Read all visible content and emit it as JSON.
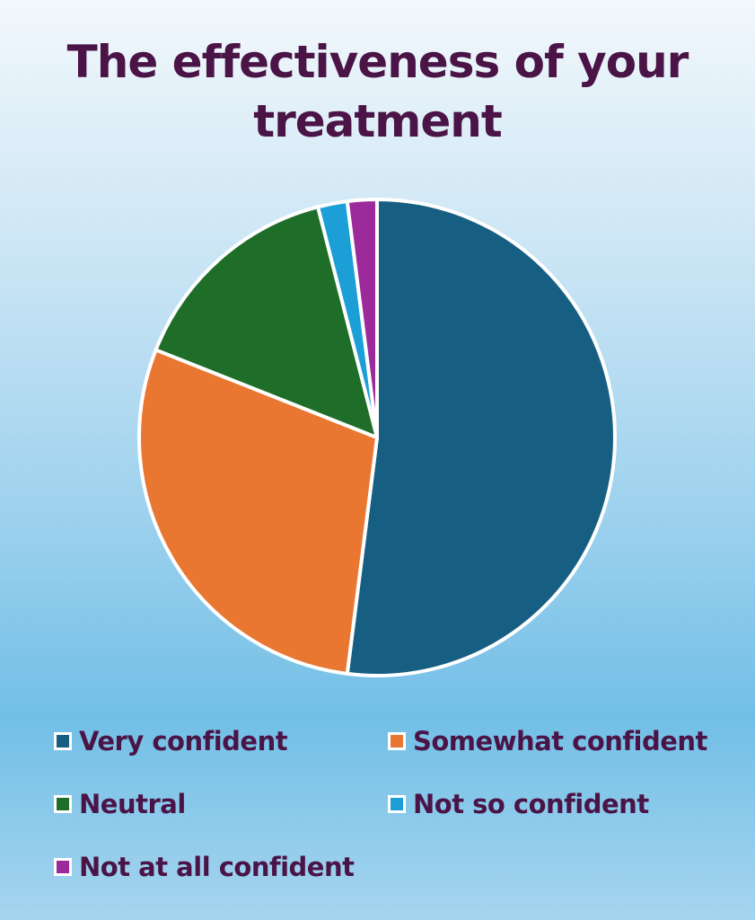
{
  "chart_data": {
    "type": "pie",
    "title": "The effectiveness of your treatment",
    "title_lines": [
      "The effectiveness of your",
      "treatment"
    ],
    "categories": [
      "Very confident",
      "Somewhat confident",
      "Neutral",
      "Not so confident",
      "Not at all confident"
    ],
    "values": [
      52,
      29,
      15,
      2,
      2
    ],
    "unit": "percent (estimated)",
    "colors": [
      "#175f82",
      "#e97732",
      "#1e6e2a",
      "#1c9fd6",
      "#9c2a9a"
    ],
    "legend_position": "bottom"
  }
}
